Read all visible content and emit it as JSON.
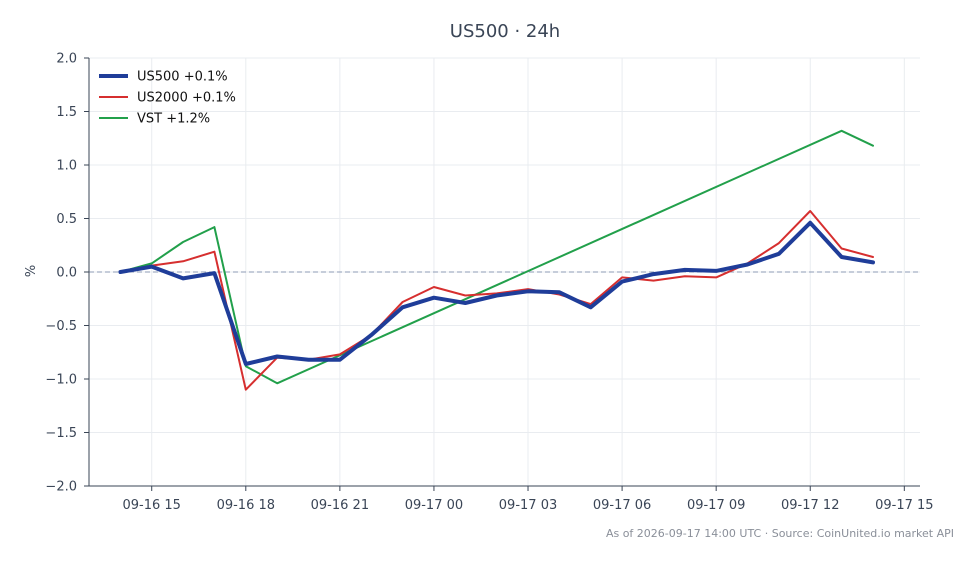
{
  "chart_data": {
    "type": "line",
    "title": "US500 · 24h",
    "xlabel": "",
    "ylabel": "%",
    "ylim": [
      -2.0,
      2.0
    ],
    "yticks": [
      -2.0,
      -1.5,
      -1.0,
      -0.5,
      0.0,
      0.5,
      1.0,
      1.5,
      2.0
    ],
    "ytick_labels": [
      "−2.0",
      "−1.5",
      "−1.0",
      "−0.5",
      "0.0",
      "0.5",
      "1.0",
      "1.5",
      "2.0"
    ],
    "x_hours_range": [
      13.0,
      39.5
    ],
    "xticks": [
      {
        "label": "09-16 15",
        "hour": 15
      },
      {
        "label": "09-16 18",
        "hour": 18
      },
      {
        "label": "09-16 21",
        "hour": 21
      },
      {
        "label": "09-17 00",
        "hour": 24
      },
      {
        "label": "09-17 03",
        "hour": 27
      },
      {
        "label": "09-17 06",
        "hour": 30
      },
      {
        "label": "09-17 09",
        "hour": 33
      },
      {
        "label": "09-17 12",
        "hour": 36
      },
      {
        "label": "09-17 15",
        "hour": 39
      }
    ],
    "grid": true,
    "legend_position": "top-left",
    "zero_line": true,
    "series": [
      {
        "name": "US500 +0.1%",
        "color": "#1f3d99",
        "width": 4,
        "x": [
          14,
          15,
          16,
          17,
          18,
          19,
          20,
          21,
          22,
          23,
          24,
          25,
          26,
          27,
          28,
          29,
          30,
          31,
          32,
          33,
          34,
          35,
          36,
          37,
          38
        ],
        "y": [
          0.0,
          0.05,
          -0.06,
          -0.01,
          -0.86,
          -0.79,
          -0.82,
          -0.82,
          -0.59,
          -0.33,
          -0.24,
          -0.29,
          -0.22,
          -0.18,
          -0.19,
          -0.33,
          -0.09,
          -0.02,
          0.02,
          0.01,
          0.07,
          0.17,
          0.46,
          0.14,
          0.09
        ]
      },
      {
        "name": "US2000 +0.1%",
        "color": "#d62f2f",
        "width": 2,
        "x": [
          14,
          15,
          16,
          17,
          18,
          19,
          20,
          21,
          22,
          23,
          24,
          25,
          26,
          27,
          28,
          29,
          30,
          31,
          32,
          33,
          34,
          35,
          36,
          37,
          38
        ],
        "y": [
          0.0,
          0.06,
          0.1,
          0.19,
          -1.1,
          -0.8,
          -0.82,
          -0.77,
          -0.59,
          -0.28,
          -0.14,
          -0.22,
          -0.2,
          -0.16,
          -0.21,
          -0.3,
          -0.05,
          -0.08,
          -0.04,
          -0.05,
          0.08,
          0.27,
          0.57,
          0.22,
          0.14
        ]
      },
      {
        "name": "VST +1.2%",
        "color": "#22a04b",
        "width": 2,
        "x": [
          14,
          15,
          16,
          17,
          18,
          19,
          37,
          38
        ],
        "y": [
          0.0,
          0.08,
          0.28,
          0.42,
          -0.88,
          -1.04,
          1.32,
          1.18
        ]
      }
    ],
    "source_note": "As of 2026-09-17 14:00 UTC · Source: CoinUnited.io market API"
  }
}
